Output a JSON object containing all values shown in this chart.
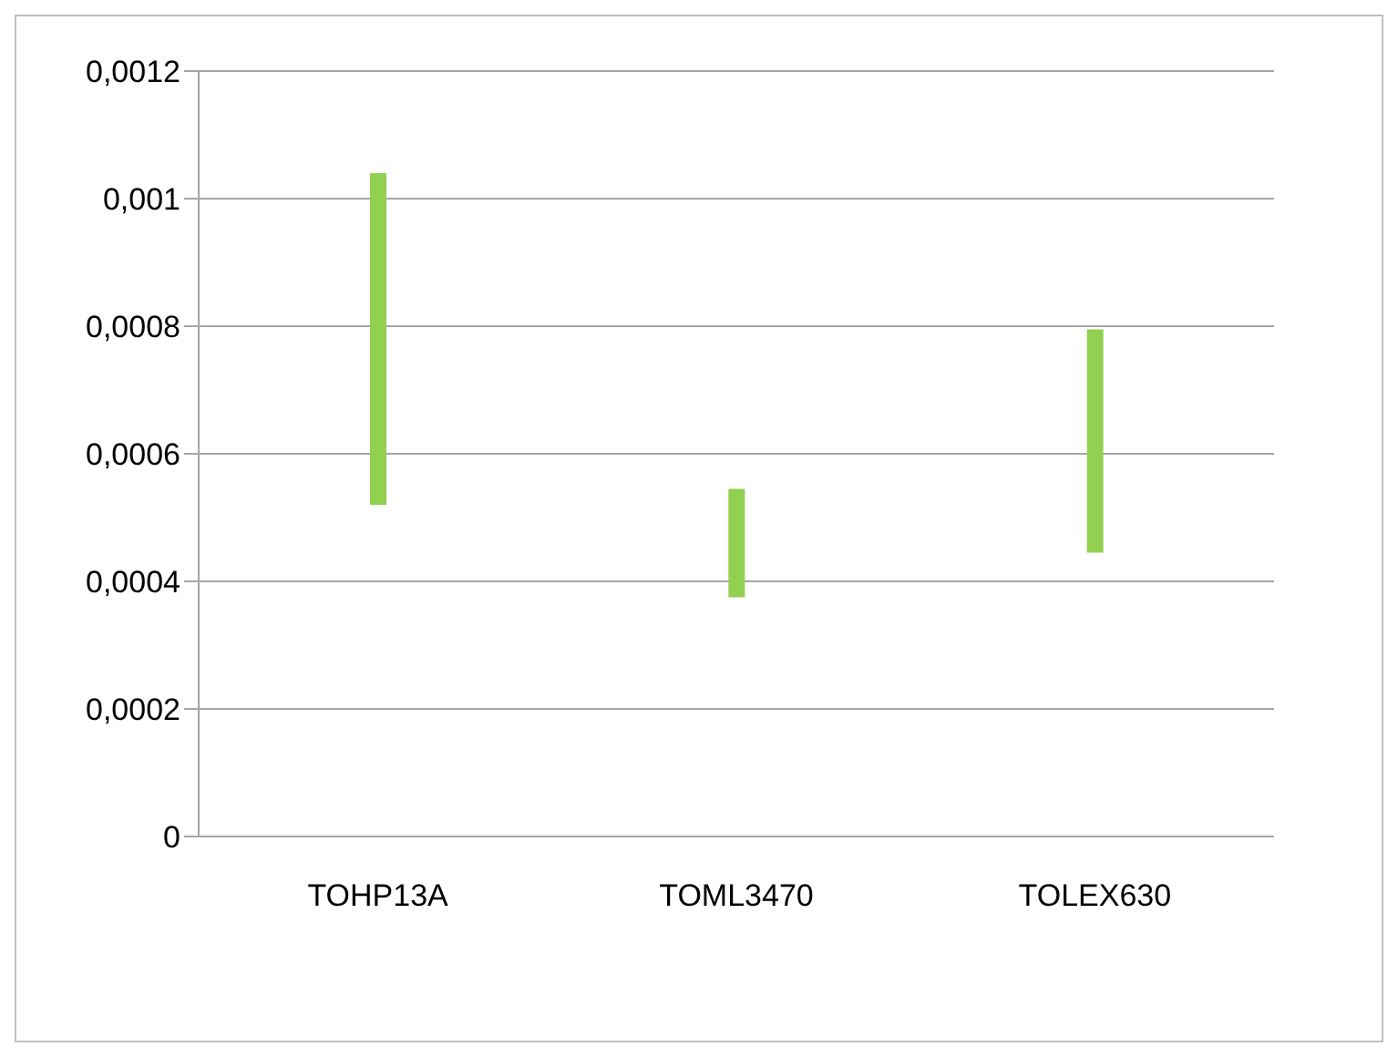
{
  "chart_data": {
    "type": "bar",
    "categories": [
      "TOHP13A",
      "TOML3470",
      "TOLEX630"
    ],
    "base": [
      0.00052,
      0.000375,
      0.000445
    ],
    "values": [
      0.00052,
      0.00017,
      0.00035
    ],
    "color": "#92d050",
    "ylim": [
      0,
      0.0012
    ],
    "yticks": [
      0,
      {
        "value": 0.0002,
        "label": "0,0002"
      },
      {
        "value": 0.0004,
        "label": "0,0004"
      },
      {
        "value": 0.0006,
        "label": "0,0006"
      },
      {
        "value": 0.0008,
        "label": "0,0008"
      },
      {
        "value": 0.001,
        "label": "0,001"
      },
      {
        "value": 0.0012,
        "label": "0,0012"
      }
    ],
    "grid": "y"
  }
}
